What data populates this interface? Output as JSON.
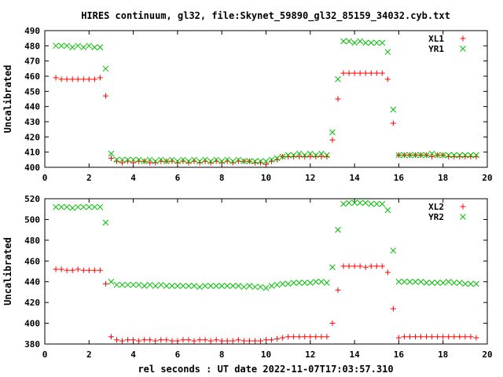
{
  "title": "HIRES continuum, gl32, file:Skynet_59890_gl32_85159_34032.cyb.txt",
  "xlabel": "rel seconds : UT date 2022-11-07T17:03:57.310",
  "colors": {
    "xl": "#ff0000",
    "yr": "#00c000",
    "axis": "#000000"
  },
  "chart_data": [
    {
      "type": "scatter",
      "ylabel": "Uncalibrated",
      "xlim": [
        0,
        20
      ],
      "ylim": [
        400,
        490
      ],
      "xticks": [
        0,
        2,
        4,
        6,
        8,
        10,
        12,
        14,
        16,
        18,
        20
      ],
      "yticks": [
        400,
        410,
        420,
        430,
        440,
        450,
        460,
        470,
        480,
        490
      ],
      "legend_position": "top-right",
      "grid": false,
      "x": [
        0.5,
        0.75,
        1.0,
        1.25,
        1.5,
        1.75,
        2.0,
        2.25,
        2.5,
        2.75,
        3.0,
        3.25,
        3.5,
        3.75,
        4.0,
        4.25,
        4.5,
        4.75,
        5.0,
        5.25,
        5.5,
        5.75,
        6.0,
        6.25,
        6.5,
        6.75,
        7.0,
        7.25,
        7.5,
        7.75,
        8.0,
        8.25,
        8.5,
        8.75,
        9.0,
        9.25,
        9.5,
        9.75,
        10.0,
        10.25,
        10.5,
        10.75,
        11.0,
        11.25,
        11.5,
        11.75,
        12.0,
        12.25,
        12.5,
        12.75,
        13.0,
        13.25,
        13.5,
        13.75,
        14.0,
        14.25,
        14.5,
        14.75,
        15.0,
        15.25,
        15.5,
        15.75,
        16.0,
        16.25,
        16.5,
        16.75,
        17.0,
        17.25,
        17.5,
        17.75,
        18.0,
        18.25,
        18.5,
        18.75,
        19.0,
        19.25,
        19.5
      ],
      "series": [
        {
          "name": "XL1",
          "marker": "plus",
          "values": [
            459,
            458,
            458,
            458,
            458,
            458,
            458,
            458,
            459,
            447,
            406,
            404,
            403,
            404,
            403,
            404,
            404,
            403,
            403,
            404,
            404,
            404,
            403,
            404,
            403,
            404,
            403,
            404,
            403,
            404,
            403,
            404,
            403,
            404,
            404,
            404,
            403,
            403,
            402,
            404,
            405,
            407,
            407,
            407,
            407,
            407,
            407,
            407,
            407,
            407,
            418,
            445,
            462,
            462,
            462,
            462,
            462,
            462,
            462,
            462,
            458,
            429,
            408,
            408,
            408,
            408,
            408,
            408,
            407,
            408,
            408,
            407,
            407,
            407,
            407,
            407,
            407
          ]
        },
        {
          "name": "YR1",
          "marker": "x",
          "values": [
            480,
            480,
            480,
            479,
            480,
            479,
            480,
            479,
            479,
            465,
            409,
            405,
            405,
            405,
            405,
            405,
            404,
            405,
            404,
            405,
            404,
            405,
            404,
            405,
            404,
            405,
            404,
            405,
            404,
            405,
            404,
            405,
            404,
            405,
            404,
            404,
            404,
            404,
            404,
            405,
            406,
            407,
            408,
            408,
            409,
            408,
            409,
            408,
            409,
            408,
            423,
            458,
            483,
            483,
            482,
            483,
            482,
            482,
            482,
            482,
            476,
            438,
            408,
            408,
            408,
            408,
            408,
            408,
            409,
            408,
            408,
            408,
            408,
            408,
            408,
            408,
            408
          ]
        }
      ]
    },
    {
      "type": "scatter",
      "ylabel": "Uncalibrated",
      "xlim": [
        0,
        20
      ],
      "ylim": [
        380,
        520
      ],
      "xticks": [
        0,
        2,
        4,
        6,
        8,
        10,
        12,
        14,
        16,
        18,
        20
      ],
      "yticks": [
        380,
        400,
        420,
        440,
        460,
        480,
        500,
        520
      ],
      "legend_position": "top-right",
      "grid": false,
      "x": [
        0.5,
        0.75,
        1.0,
        1.25,
        1.5,
        1.75,
        2.0,
        2.25,
        2.5,
        2.75,
        3.0,
        3.25,
        3.5,
        3.75,
        4.0,
        4.25,
        4.5,
        4.75,
        5.0,
        5.25,
        5.5,
        5.75,
        6.0,
        6.25,
        6.5,
        6.75,
        7.0,
        7.25,
        7.5,
        7.75,
        8.0,
        8.25,
        8.5,
        8.75,
        9.0,
        9.25,
        9.5,
        9.75,
        10.0,
        10.25,
        10.5,
        10.75,
        11.0,
        11.25,
        11.5,
        11.75,
        12.0,
        12.25,
        12.5,
        12.75,
        13.0,
        13.25,
        13.5,
        13.75,
        14.0,
        14.25,
        14.5,
        14.75,
        15.0,
        15.25,
        15.5,
        15.75,
        16.0,
        16.25,
        16.5,
        16.75,
        17.0,
        17.25,
        17.5,
        17.75,
        18.0,
        18.25,
        18.5,
        18.75,
        19.0,
        19.25,
        19.5
      ],
      "series": [
        {
          "name": "XL2",
          "marker": "plus",
          "values": [
            452,
            452,
            451,
            451,
            452,
            451,
            451,
            451,
            451,
            438,
            387,
            384,
            383,
            384,
            384,
            383,
            384,
            384,
            383,
            384,
            384,
            383,
            383,
            384,
            384,
            383,
            384,
            384,
            383,
            384,
            383,
            383,
            383,
            384,
            383,
            383,
            383,
            383,
            384,
            384,
            385,
            386,
            387,
            387,
            387,
            387,
            387,
            387,
            387,
            387,
            400,
            432,
            455,
            455,
            455,
            455,
            454,
            455,
            455,
            455,
            449,
            414,
            386,
            387,
            387,
            387,
            387,
            387,
            387,
            387,
            387,
            387,
            387,
            387,
            387,
            387,
            386
          ]
        },
        {
          "name": "YR2",
          "marker": "x",
          "values": [
            512,
            512,
            512,
            511,
            512,
            512,
            512,
            512,
            512,
            497,
            440,
            437,
            437,
            437,
            437,
            437,
            436,
            437,
            436,
            437,
            436,
            436,
            436,
            436,
            436,
            436,
            435,
            436,
            436,
            436,
            436,
            436,
            436,
            436,
            435,
            436,
            435,
            435,
            434,
            436,
            437,
            438,
            438,
            439,
            439,
            439,
            439,
            440,
            440,
            439,
            454,
            490,
            515,
            516,
            516,
            516,
            516,
            515,
            515,
            515,
            509,
            470,
            440,
            440,
            440,
            440,
            440,
            439,
            439,
            439,
            439,
            440,
            439,
            439,
            438,
            438,
            438
          ]
        }
      ]
    }
  ]
}
